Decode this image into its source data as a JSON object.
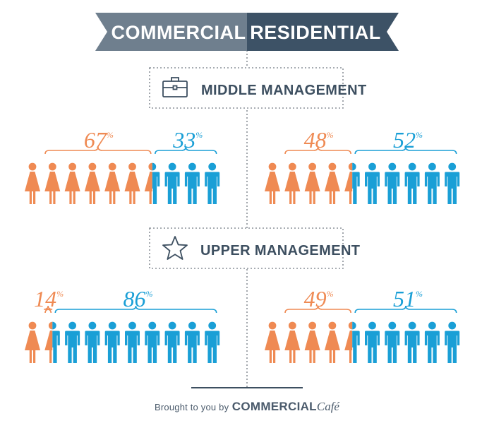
{
  "header": {
    "left_label": "COMMERCIAL",
    "right_label": "RESIDENTIAL"
  },
  "sections": [
    {
      "id": "middle",
      "label": "MIDDLE MANAGEMENT",
      "icon": "briefcase-icon",
      "panels": [
        {
          "side": "commercial",
          "women_pct": "67",
          "men_pct": "33",
          "women_share": 0.67
        },
        {
          "side": "residential",
          "women_pct": "48",
          "men_pct": "52",
          "women_share": 0.48
        }
      ]
    },
    {
      "id": "upper",
      "label": "UPPER MANAGEMENT",
      "icon": "star-icon",
      "panels": [
        {
          "side": "commercial",
          "women_pct": "14",
          "men_pct": "86",
          "women_share": 0.14
        },
        {
          "side": "residential",
          "women_pct": "49",
          "men_pct": "51",
          "women_share": 0.49
        }
      ]
    }
  ],
  "percent_sign": "%",
  "icons_per_panel": 10,
  "colors": {
    "women": "#ef8a53",
    "men": "#1a9fd6",
    "banner_left": "#6f7f8e",
    "banner_right": "#3d5266",
    "text_dark": "#3d4f60",
    "dotted": "#8a9098"
  },
  "footer": {
    "prefix": "Brought to you by",
    "brand": "COMMERCIAL",
    "brand_suffix": "Café"
  }
}
